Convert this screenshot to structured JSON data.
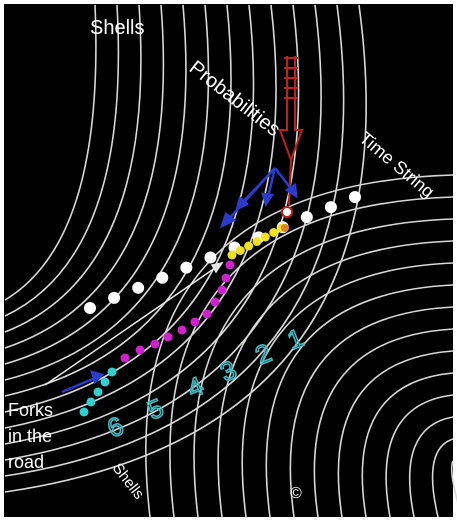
{
  "labels": {
    "shells_top": "Shells",
    "probabilities": "Probabilities",
    "time_string": "Time String",
    "forks": [
      "Forks",
      "in the",
      "road"
    ],
    "shells_bottom": "Shells",
    "copyright": "©"
  },
  "shell_numbers": [
    1,
    2,
    3,
    4,
    5,
    6
  ]
}
